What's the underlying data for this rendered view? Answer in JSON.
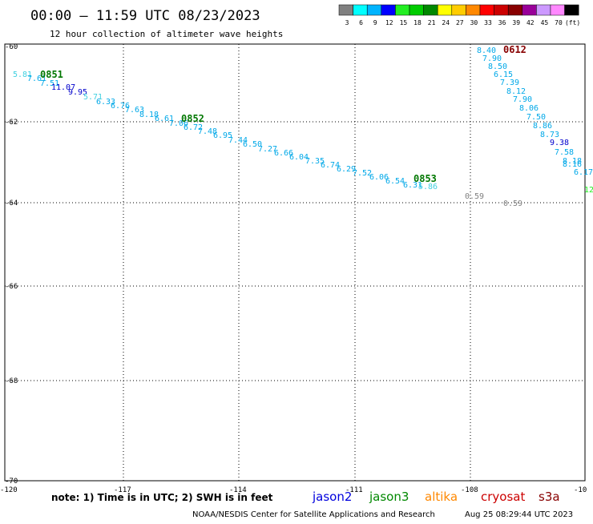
{
  "title": "00:00 – 11:59 UTC 08/23/2023",
  "subtitle": "12 hour collection of altimeter wave heights",
  "color_scale": {
    "colors": [
      "#808080",
      "#00ffff",
      "#00b4ff",
      "#0000ff",
      "#22ee22",
      "#00cc00",
      "#008800",
      "#ffff00",
      "#ffcc00",
      "#ff8800",
      "#ff0000",
      "#cc0000",
      "#880000",
      "#990099",
      "#cc99ff",
      "#ff88ff",
      "#000000"
    ],
    "labels": [
      "3",
      "6",
      "9",
      "12",
      "15",
      "18",
      "21",
      "24",
      "27",
      "30",
      "33",
      "36",
      "39",
      "42",
      "45",
      "70",
      "(ft)"
    ]
  },
  "axes": {
    "lat_labels": [
      "-60",
      "-62",
      "-64",
      "-66",
      "-68",
      "-70"
    ],
    "lon_labels": [
      "-120",
      "-117",
      "-114",
      "-111",
      "-108",
      "-10"
    ]
  },
  "pass_labels": [
    {
      "text": "0851",
      "color": "#007700"
    },
    {
      "text": "0852",
      "color": "#007700"
    },
    {
      "text": "0853",
      "color": "#007700"
    },
    {
      "text": "0612",
      "color": "#880000"
    }
  ],
  "readings": [
    {
      "v": "5.81",
      "c": "#40d0e0"
    },
    {
      "v": "7.61",
      "c": "#00a8e8"
    },
    {
      "v": "7.51",
      "c": "#00a8e8"
    },
    {
      "v": "11.07",
      "c": "#0000cc"
    },
    {
      "v": "9.95",
      "c": "#0000cc"
    },
    {
      "v": "5.71",
      "c": "#40d0e0"
    },
    {
      "v": "6.33",
      "c": "#00a8e8"
    },
    {
      "v": "6.76",
      "c": "#00a8e8"
    },
    {
      "v": "7.63",
      "c": "#00a8e8"
    },
    {
      "v": "8.18",
      "c": "#00a8e8"
    },
    {
      "v": "6.61",
      "c": "#00a8e8"
    },
    {
      "v": "7.06",
      "c": "#00a8e8"
    },
    {
      "v": "6.72",
      "c": "#00a8e8"
    },
    {
      "v": "7.48",
      "c": "#00a8e8"
    },
    {
      "v": "6.95",
      "c": "#00a8e8"
    },
    {
      "v": "7.44",
      "c": "#00a8e8"
    },
    {
      "v": "6.50",
      "c": "#00a8e8"
    },
    {
      "v": "7.27",
      "c": "#00a8e8"
    },
    {
      "v": "6.66",
      "c": "#00a8e8"
    },
    {
      "v": "6.04",
      "c": "#00a8e8"
    },
    {
      "v": "7.35",
      "c": "#00a8e8"
    },
    {
      "v": "6.74",
      "c": "#00a8e8"
    },
    {
      "v": "6.29",
      "c": "#00a8e8"
    },
    {
      "v": "7.52",
      "c": "#00a8e8"
    },
    {
      "v": "6.06",
      "c": "#00a8e8"
    },
    {
      "v": "6.54",
      "c": "#00a8e8"
    },
    {
      "v": "6.31",
      "c": "#00a8e8"
    },
    {
      "v": "5.86",
      "c": "#40d0e0"
    },
    {
      "v": "8.40",
      "c": "#00a8e8"
    },
    {
      "v": "7.90",
      "c": "#00a8e8"
    },
    {
      "v": "8.50",
      "c": "#00a8e8"
    },
    {
      "v": "6.15",
      "c": "#00a8e8"
    },
    {
      "v": "7.39",
      "c": "#00a8e8"
    },
    {
      "v": "8.12",
      "c": "#00a8e8"
    },
    {
      "v": "7.90",
      "c": "#00a8e8"
    },
    {
      "v": "8.06",
      "c": "#00a8e8"
    },
    {
      "v": "7.50",
      "c": "#00a8e8"
    },
    {
      "v": "8.86",
      "c": "#00a8e8"
    },
    {
      "v": "8.73",
      "c": "#00a8e8"
    },
    {
      "v": "9.38",
      "c": "#0000cc"
    },
    {
      "v": "7.58",
      "c": "#00a8e8"
    },
    {
      "v": "8.18",
      "c": "#00a8e8"
    },
    {
      "v": "8.16",
      "c": "#00a8e8"
    },
    {
      "v": "6.17",
      "c": "#00a8e8"
    },
    {
      "v": "12",
      "c": "#22ee22"
    },
    {
      "v": "0.59",
      "c": "#808080"
    },
    {
      "v": "0.59",
      "c": "#808080"
    }
  ],
  "note": "note: 1) Time is in UTC; 2) SWH is in feet",
  "satellites": [
    {
      "name": "jason2",
      "color": "#0000dd"
    },
    {
      "name": "jason3",
      "color": "#008800"
    },
    {
      "name": "altika",
      "color": "#ff8800"
    },
    {
      "name": "cryosat",
      "color": "#cc0000"
    },
    {
      "name": "s3a",
      "color": "#880000"
    }
  ],
  "credit_left": "NOAA/NESDIS Center for Satellite Applications and Research",
  "credit_right": "Aug 25 08:29:44 UTC 2023"
}
